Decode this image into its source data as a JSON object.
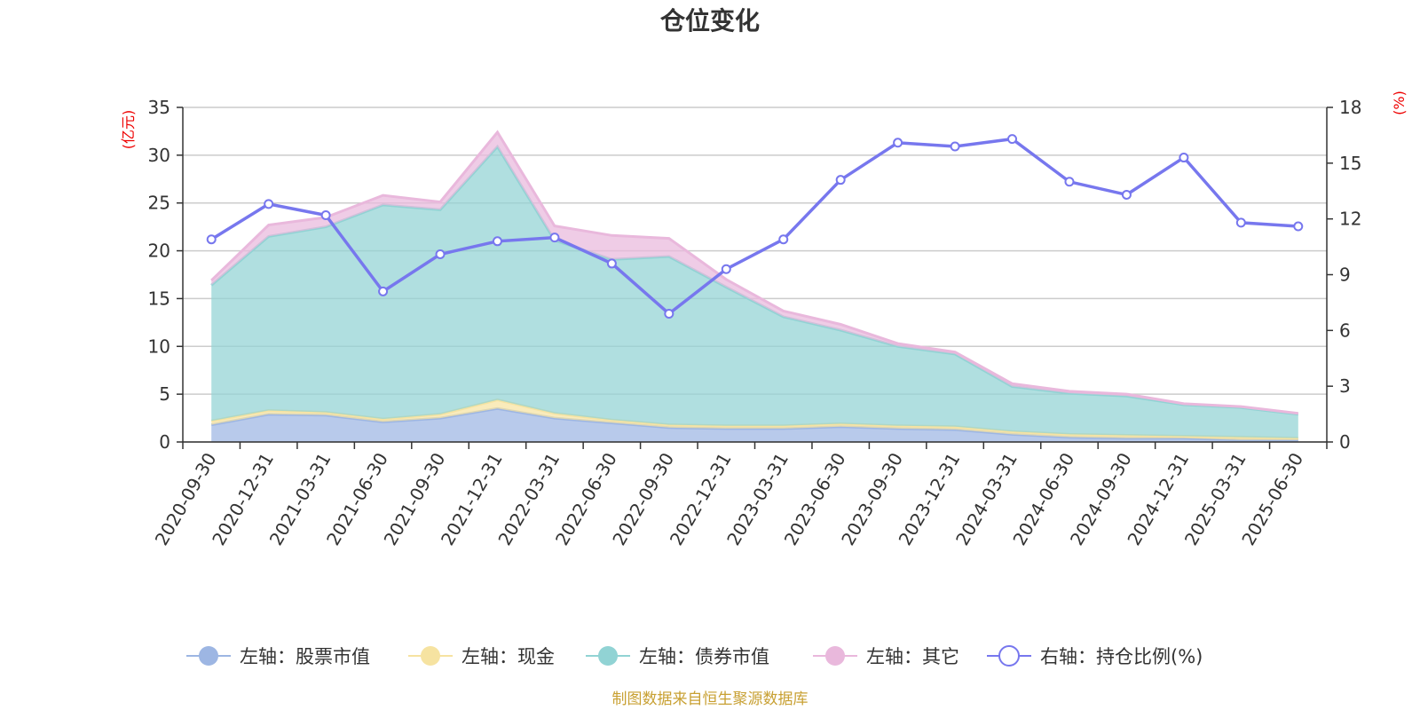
{
  "chart_data": {
    "type": "area",
    "title": "仓位变化",
    "source": "制图数据来自恒生聚源数据库",
    "left_axis": {
      "unit": "(亿元)",
      "ylim": [
        0,
        35
      ],
      "ticks": [
        0,
        5,
        10,
        15,
        20,
        25,
        30,
        35
      ]
    },
    "right_axis": {
      "unit": "(%)",
      "ylim": [
        0,
        18
      ],
      "ticks": [
        0,
        3,
        6,
        9,
        12,
        15,
        18
      ]
    },
    "grid": true,
    "stacked": true,
    "legend_position": "bottom",
    "x": [
      "2020-09-30",
      "2020-12-31",
      "2021-03-31",
      "2021-06-30",
      "2021-09-30",
      "2021-12-31",
      "2022-03-31",
      "2022-06-30",
      "2022-09-30",
      "2022-12-31",
      "2023-03-31",
      "2023-06-30",
      "2023-09-30",
      "2023-12-31",
      "2024-03-31",
      "2024-06-30",
      "2024-09-30",
      "2024-12-31",
      "2025-03-31",
      "2025-06-30"
    ],
    "series": [
      {
        "name": "左轴：股票市值",
        "axis": "left",
        "kind": "area",
        "color": "#9db6e3",
        "values": [
          1.8,
          2.9,
          2.8,
          2.1,
          2.5,
          3.5,
          2.5,
          2.0,
          1.5,
          1.4,
          1.4,
          1.6,
          1.4,
          1.3,
          0.8,
          0.5,
          0.4,
          0.4,
          0.2,
          0.2
        ]
      },
      {
        "name": "左轴：现金",
        "axis": "left",
        "kind": "area",
        "color": "#f6e3a1",
        "values": [
          0.4,
          0.4,
          0.3,
          0.3,
          0.4,
          0.9,
          0.5,
          0.3,
          0.3,
          0.3,
          0.3,
          0.3,
          0.3,
          0.3,
          0.3,
          0.3,
          0.3,
          0.2,
          0.3,
          0.2
        ]
      },
      {
        "name": "左轴：债券市值",
        "axis": "left",
        "kind": "area",
        "color": "#91d3d4",
        "values": [
          14.2,
          18.2,
          19.4,
          22.4,
          21.4,
          26.5,
          18.1,
          16.8,
          17.6,
          14.5,
          11.4,
          9.8,
          8.3,
          7.6,
          4.7,
          4.3,
          4.1,
          3.3,
          3.1,
          2.5
        ]
      },
      {
        "name": "左轴：其它",
        "axis": "left",
        "kind": "area",
        "color": "#e9b8dc",
        "values": [
          0.5,
          1.2,
          1.0,
          1.0,
          0.8,
          1.5,
          1.5,
          2.5,
          1.9,
          0.8,
          0.6,
          0.6,
          0.3,
          0.2,
          0.3,
          0.2,
          0.2,
          0.1,
          0.1,
          0.1
        ]
      },
      {
        "name": "右轴：持仓比例(%)",
        "axis": "right",
        "kind": "line",
        "color": "#7777ee",
        "values": [
          10.9,
          12.8,
          12.2,
          8.1,
          10.1,
          10.8,
          11.0,
          9.6,
          6.9,
          9.3,
          10.9,
          14.1,
          16.1,
          15.9,
          16.3,
          14.0,
          13.3,
          15.3,
          11.8,
          11.6
        ]
      }
    ]
  }
}
